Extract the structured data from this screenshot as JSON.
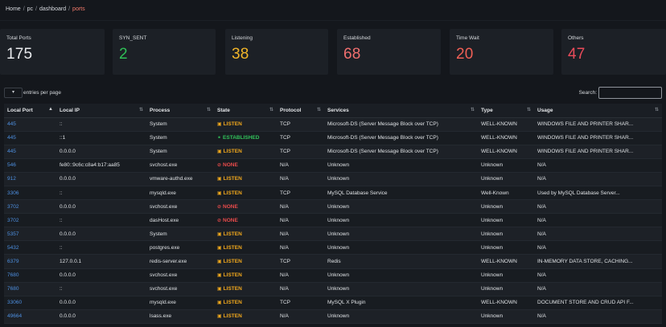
{
  "breadcrumb": {
    "items": [
      "Home",
      "pc",
      "dashboard"
    ],
    "current": "ports",
    "separator": "/"
  },
  "stats": [
    {
      "label": "Total Ports",
      "value": "175",
      "color": "#e8eaed"
    },
    {
      "label": "SYN_SENT",
      "value": "2",
      "color": "#2fbf56"
    },
    {
      "label": "Listening",
      "value": "38",
      "color": "#f2b629"
    },
    {
      "label": "Established",
      "value": "68",
      "color": "#f06f6f"
    },
    {
      "label": "Time Wait",
      "value": "20",
      "color": "#ef5f55"
    },
    {
      "label": "Others",
      "value": "47",
      "color": "#ea4b5a"
    }
  ],
  "controls": {
    "entries_label": "entries per page",
    "search_label": "Search:",
    "search_value": ""
  },
  "table": {
    "columns": [
      "Local Port",
      "Local IP",
      "Process",
      "State",
      "Protocol",
      "Services",
      "Type",
      "Usage"
    ],
    "rows": [
      {
        "port": "445",
        "ip": "::",
        "process": "System",
        "state": "LISTEN",
        "protocol": "TCP",
        "service": "Microsoft-DS (Server Message Block over TCP)",
        "type": "WELL-KNOWN",
        "usage": "WINDOWS FILE AND PRINTER SHAR..."
      },
      {
        "port": "445",
        "ip": "::1",
        "process": "System",
        "state": "ESTABLISHED",
        "protocol": "TCP",
        "service": "Microsoft-DS (Server Message Block over TCP)",
        "type": "WELL-KNOWN",
        "usage": "WINDOWS FILE AND PRINTER SHAR..."
      },
      {
        "port": "445",
        "ip": "0.0.0.0",
        "process": "System",
        "state": "LISTEN",
        "protocol": "TCP",
        "service": "Microsoft-DS (Server Message Block over TCP)",
        "type": "WELL-KNOWN",
        "usage": "WINDOWS FILE AND PRINTER SHAR..."
      },
      {
        "port": "546",
        "ip": "fe80::9c6c:c8a4:b17:aa85",
        "process": "svchost.exe",
        "state": "NONE",
        "protocol": "N/A",
        "service": "Unknown",
        "type": "Unknown",
        "usage": "N/A"
      },
      {
        "port": "912",
        "ip": "0.0.0.0",
        "process": "vmware-authd.exe",
        "state": "LISTEN",
        "protocol": "N/A",
        "service": "Unknown",
        "type": "Unknown",
        "usage": "N/A"
      },
      {
        "port": "3306",
        "ip": "::",
        "process": "mysqld.exe",
        "state": "LISTEN",
        "protocol": "TCP",
        "service": "MySQL Database Service",
        "type": "Well-Known",
        "usage": "Used by MySQL Database Server..."
      },
      {
        "port": "3702",
        "ip": "0.0.0.0",
        "process": "svchost.exe",
        "state": "NONE",
        "protocol": "N/A",
        "service": "Unknown",
        "type": "Unknown",
        "usage": "N/A"
      },
      {
        "port": "3702",
        "ip": "::",
        "process": "dasHost.exe",
        "state": "NONE",
        "protocol": "N/A",
        "service": "Unknown",
        "type": "Unknown",
        "usage": "N/A"
      },
      {
        "port": "5357",
        "ip": "0.0.0.0",
        "process": "System",
        "state": "LISTEN",
        "protocol": "N/A",
        "service": "Unknown",
        "type": "Unknown",
        "usage": "N/A"
      },
      {
        "port": "5432",
        "ip": "::",
        "process": "postgres.exe",
        "state": "LISTEN",
        "protocol": "N/A",
        "service": "Unknown",
        "type": "Unknown",
        "usage": "N/A"
      },
      {
        "port": "6379",
        "ip": "127.0.0.1",
        "process": "redis-server.exe",
        "state": "LISTEN",
        "protocol": "TCP",
        "service": "Redis",
        "type": "WELL-KNOWN",
        "usage": "IN-MEMORY DATA STORE, CACHING..."
      },
      {
        "port": "7680",
        "ip": "0.0.0.0",
        "process": "svchost.exe",
        "state": "LISTEN",
        "protocol": "N/A",
        "service": "Unknown",
        "type": "Unknown",
        "usage": "N/A"
      },
      {
        "port": "7680",
        "ip": "::",
        "process": "svchost.exe",
        "state": "LISTEN",
        "protocol": "N/A",
        "service": "Unknown",
        "type": "Unknown",
        "usage": "N/A"
      },
      {
        "port": "33060",
        "ip": "0.0.0.0",
        "process": "mysqld.exe",
        "state": "LISTEN",
        "protocol": "TCP",
        "service": "MySQL X Plugin",
        "type": "WELL-KNOWN",
        "usage": "DOCUMENT STORE AND CRUD API F..."
      },
      {
        "port": "49664",
        "ip": "0.0.0.0",
        "process": "lsass.exe",
        "state": "LISTEN",
        "protocol": "N/A",
        "service": "Unknown",
        "type": "Unknown",
        "usage": "N/A"
      }
    ]
  },
  "icons": {
    "LISTEN": "lock-icon",
    "ESTABLISHED": "link-icon",
    "NONE": "prohibited-icon"
  }
}
